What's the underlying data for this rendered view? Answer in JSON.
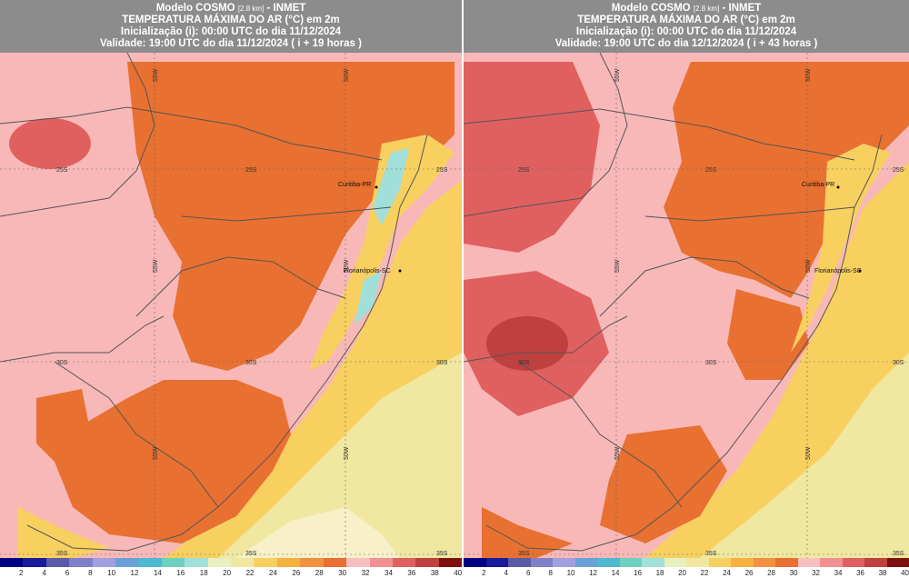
{
  "panels": [
    {
      "model_name": "Modelo COSMO",
      "resolution": "[2.8 km]",
      "institute": "- INMET",
      "variable": "TEMPERATURA MÁXIMA DO AR (°C) em 2m",
      "initialization": "Inicialização (i): 00:00 UTC do dia 11/12/2024",
      "validity": "Validade: 19:00 UTC do dia 11/12/2024 ( i + 19 horas )",
      "lat_labels": [
        "25S",
        "30S",
        "35S"
      ],
      "lon_labels": [
        "55W",
        "50W"
      ],
      "cities": [
        "Curitiba-PR",
        "Florianópolis-SC"
      ]
    },
    {
      "model_name": "Modelo COSMO",
      "resolution": "[2.8 km]",
      "institute": "- INMET",
      "variable": "TEMPERATURA MÁXIMA DO AR (°C) em 2m",
      "initialization": "Inicialização (i): 00:00 UTC do dia 11/12/2024",
      "validity": "Validade: 19:00 UTC do dia 12/12/2024 ( i + 43 horas )",
      "lat_labels": [
        "25S",
        "30S",
        "35S"
      ],
      "lon_labels": [
        "55W",
        "50W"
      ],
      "cities": [
        "Curitiba-PR",
        "Florianópolis-SC"
      ]
    }
  ],
  "colorbar": {
    "labels": [
      "2",
      "4",
      "6",
      "8",
      "10",
      "12",
      "14",
      "16",
      "18",
      "20",
      "22",
      "24",
      "26",
      "28",
      "30",
      "32",
      "34",
      "36",
      "38",
      "40"
    ],
    "colors": [
      "#000080",
      "#1a1a9a",
      "#5a5aa8",
      "#8080c8",
      "#a0a0e0",
      "#6aa0d8",
      "#50b8d0",
      "#70d0c0",
      "#a0e0d8",
      "#e8f0c0",
      "#f0e8a0",
      "#f8d060",
      "#f8b040",
      "#f09040",
      "#e87030",
      "#f8c0c0",
      "#f09090",
      "#e06060",
      "#c04040",
      "#801010"
    ]
  }
}
